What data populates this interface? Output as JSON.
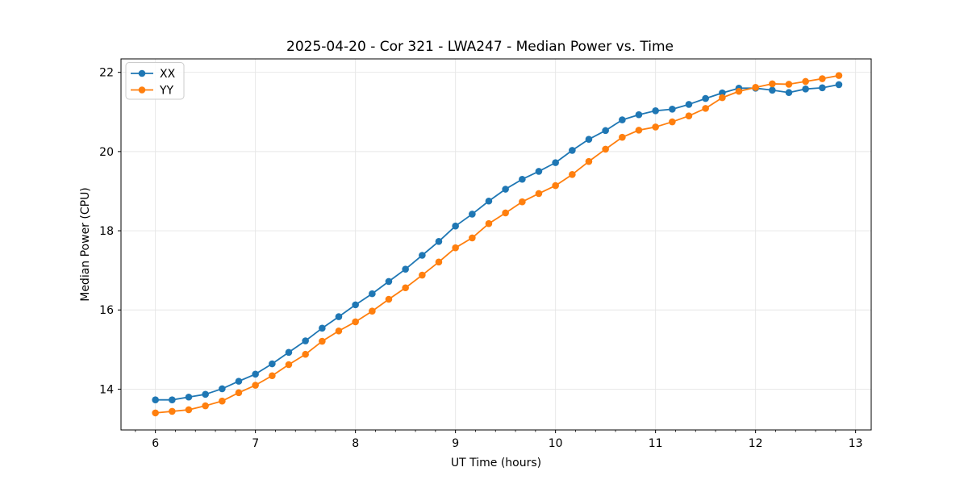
{
  "chart_data": {
    "type": "line",
    "title": "2025-04-20 - Cor 321 - LWA247 - Median Power vs. Time",
    "xlabel": "UT Time (hours)",
    "ylabel": "Median Power (CPU)",
    "xlim": [
      5.656,
      13.156
    ],
    "ylim": [
      12.97,
      22.34
    ],
    "xticks": [
      6,
      7,
      8,
      9,
      10,
      11,
      12,
      13
    ],
    "yticks": [
      14,
      16,
      18,
      20,
      22
    ],
    "x_minor_step": 0.2,
    "grid": true,
    "grid_color": "#e6e6e6",
    "legend_position": "upper-left",
    "x": [
      6,
      6.167,
      6.333,
      6.5,
      6.667,
      6.833,
      7,
      7.167,
      7.333,
      7.5,
      7.667,
      7.833,
      8,
      8.167,
      8.333,
      8.5,
      8.667,
      8.833,
      9,
      9.167,
      9.333,
      9.5,
      9.667,
      9.833,
      10,
      10.167,
      10.333,
      10.5,
      10.667,
      10.833,
      11,
      11.167,
      11.333,
      11.5,
      11.667,
      11.833,
      12,
      12.167,
      12.333,
      12.5,
      12.667,
      12.833
    ],
    "series": [
      {
        "name": "XX",
        "color": "#1f77b4",
        "values": [
          13.73,
          13.73,
          13.8,
          13.87,
          14.01,
          14.2,
          14.38,
          14.64,
          14.93,
          15.22,
          15.54,
          15.83,
          16.13,
          16.41,
          16.72,
          17.03,
          17.38,
          17.73,
          18.12,
          18.42,
          18.75,
          19.05,
          19.3,
          19.5,
          19.72,
          20.03,
          20.31,
          20.53,
          20.8,
          20.93,
          21.03,
          21.07,
          21.19,
          21.34,
          21.48,
          21.6,
          21.6,
          21.55,
          21.49,
          21.58,
          21.61,
          21.69
        ]
      },
      {
        "name": "YY",
        "color": "#ff7f0e",
        "values": [
          13.4,
          13.44,
          13.48,
          13.58,
          13.7,
          13.91,
          14.1,
          14.34,
          14.62,
          14.88,
          15.21,
          15.47,
          15.7,
          15.97,
          16.27,
          16.56,
          16.88,
          17.21,
          17.57,
          17.82,
          18.18,
          18.45,
          18.73,
          18.94,
          19.14,
          19.42,
          19.75,
          20.06,
          20.36,
          20.54,
          20.62,
          20.75,
          20.9,
          21.09,
          21.36,
          21.52,
          21.62,
          21.71,
          21.7,
          21.77,
          21.84,
          21.92
        ]
      }
    ]
  }
}
